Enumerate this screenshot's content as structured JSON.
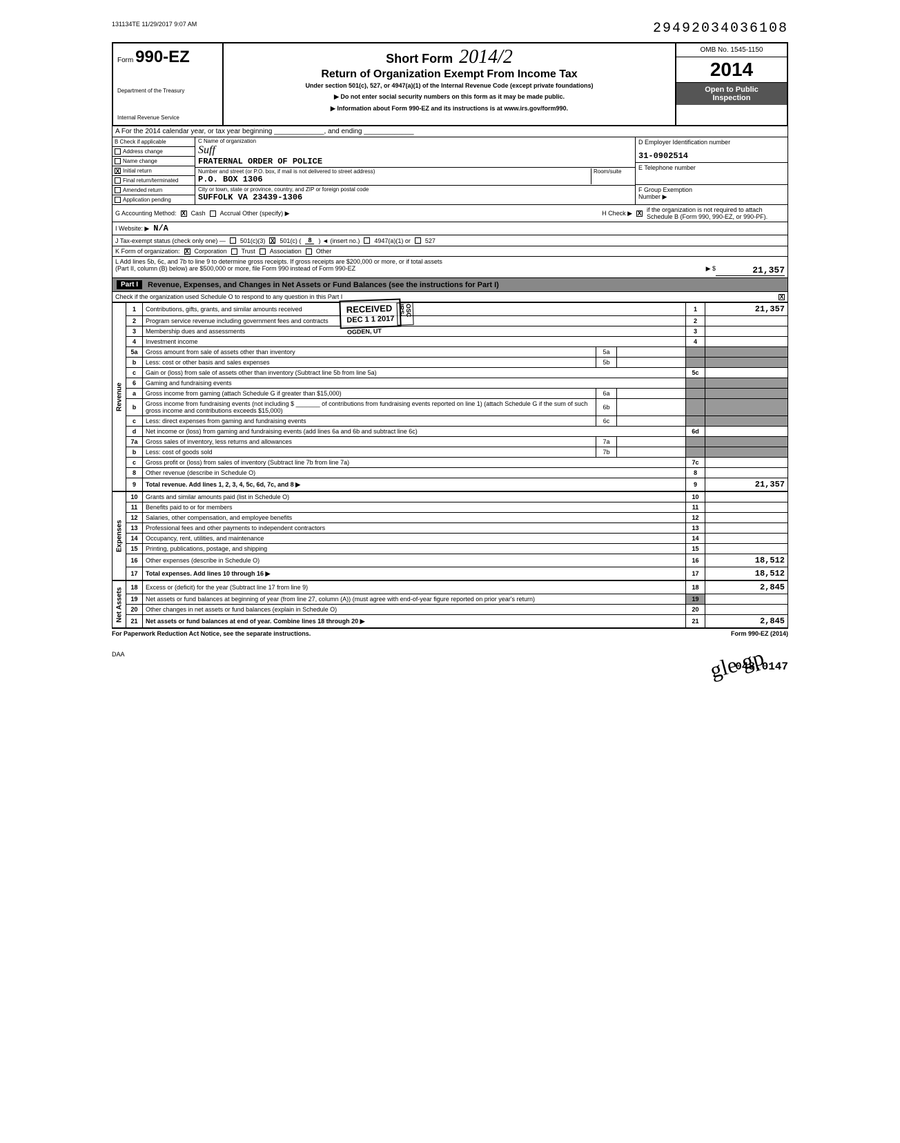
{
  "header": {
    "timestamp": "131134TE 11/29/2017 9:07 AM",
    "doc_number": "29492034036108",
    "form_prefix": "Form",
    "form_number": "990-EZ",
    "dept1": "Department of the Treasury",
    "dept2": "Internal Revenue Service",
    "short_form": "Short Form",
    "handwritten_year": "2014/2",
    "title": "Return of Organization Exempt From Income Tax",
    "subtitle": "Under section 501(c), 527, or 4947(a)(1) of the Internal Revenue Code (except private foundations)",
    "instruction1": "▶ Do not enter social security numbers on this form as it may be made public.",
    "instruction2": "▶ Information about Form 990-EZ and its instructions is at www.irs.gov/form990.",
    "omb": "OMB No. 1545-1150",
    "year": "2014",
    "public1": "Open to Public",
    "public2": "Inspection"
  },
  "section_a": "A  For the 2014 calendar year, or tax year beginning _____________, and ending _____________",
  "checks": {
    "b_label": "B Check if applicable",
    "address": "Address change",
    "name": "Name change",
    "initial": "Initial return",
    "initial_x": "X",
    "final": "Final return/terminated",
    "amended": "Amended return",
    "app": "Application pending"
  },
  "org": {
    "c_label": "C Name of organization",
    "name_hand": "Suff",
    "name": "FRATERNAL ORDER OF POLICE",
    "addr_label": "Number and street (or P.O. box, if mail is not delivered to street address)",
    "room_label": "Room/suite",
    "addr": "P.O. BOX 1306",
    "city_label": "City or town, state or province, country, and ZIP or foreign postal code",
    "city": "SUFFOLK                VA 23439-1306"
  },
  "right": {
    "d_label": "D Employer Identification number",
    "ein": "31-0902514",
    "e_label": "E Telephone number",
    "f_label": "F Group Exemption",
    "f_label2": "Number ▶"
  },
  "lines_gk": {
    "g": "G  Accounting Method:",
    "g_cash": "Cash",
    "g_accrual": "Accrual  Other (specify) ▶",
    "g_x": "X",
    "h": "H  Check ▶",
    "h_x": "X",
    "h_text": "if the organization is not required to attach Schedule B (Form 990, 990-EZ, or 990-PF).",
    "i": "I  Website: ▶",
    "i_val": "N/A",
    "j": "J  Tax-exempt status (check only one) —",
    "j_501c3": "501(c)(3)",
    "j_501c": "501(c) (",
    "j_x": "X",
    "j_num": "8",
    "j_insert": ") ◄ (insert no.)",
    "j_4947": "4947(a)(1) or",
    "j_527": "527",
    "k": "K  Form of organization:",
    "k_x": "X",
    "k_corp": "Corporation",
    "k_trust": "Trust",
    "k_assoc": "Association",
    "k_other": "Other",
    "l": "L  Add lines 5b, 6c, and 7b to line 9 to determine gross receipts. If gross receipts are $200,000 or more, or if total assets",
    "l2": "(Part II, column (B) below) are $500,000 or more, file Form 990 instead of Form 990-EZ",
    "l_arrow": "▶ $",
    "l_amount": "21,357"
  },
  "part1": {
    "label": "Part I",
    "title": "Revenue, Expenses, and Changes in Net Assets or Fund Balances (see the instructions for Part I)",
    "check": "Check if the organization used Schedule O to respond to any question in this Part I",
    "check_x": "X"
  },
  "revenue_label": "Revenue",
  "expenses_label": "Expenses",
  "netassets_label": "Net Assets",
  "rows": [
    {
      "n": "1",
      "d": "Contributions, gifts, grants, and similar amounts received",
      "ln": "1",
      "amt": "21,357"
    },
    {
      "n": "2",
      "d": "Program service revenue including government fees and contracts",
      "ln": "2",
      "amt": ""
    },
    {
      "n": "3",
      "d": "Membership dues and assessments",
      "ln": "3",
      "amt": ""
    },
    {
      "n": "4",
      "d": "Investment income",
      "ln": "4",
      "amt": ""
    },
    {
      "n": "5a",
      "d": "Gross amount from sale of assets other than inventory",
      "sub": "5a",
      "shaded": true
    },
    {
      "n": "b",
      "d": "Less: cost or other basis and sales expenses",
      "sub": "5b",
      "shaded": true
    },
    {
      "n": "c",
      "d": "Gain or (loss) from sale of assets other than inventory (Subtract line 5b from line 5a)",
      "ln": "5c",
      "amt": ""
    },
    {
      "n": "6",
      "d": "Gaming and fundraising events",
      "shaded": true,
      "nolinenum": true
    },
    {
      "n": "a",
      "d": "Gross income from gaming (attach Schedule G if greater than $15,000)",
      "sub": "6a",
      "shaded": true
    },
    {
      "n": "b",
      "d": "Gross income from fundraising events (not including $ _______ of contributions from fundraising events reported on line 1) (attach Schedule G if the sum of such gross income and contributions exceeds $15,000)",
      "sub": "6b",
      "shaded": true
    },
    {
      "n": "c",
      "d": "Less: direct expenses from gaming and fundraising events",
      "sub": "6c",
      "shaded": true
    },
    {
      "n": "d",
      "d": "Net income or (loss) from gaming and fundraising events (add lines 6a and 6b and subtract line 6c)",
      "ln": "6d",
      "amt": ""
    },
    {
      "n": "7a",
      "d": "Gross sales of inventory, less returns and allowances",
      "sub": "7a",
      "shaded": true
    },
    {
      "n": "b",
      "d": "Less: cost of goods sold",
      "sub": "7b",
      "shaded": true
    },
    {
      "n": "c",
      "d": "Gross profit or (loss) from sales of inventory (Subtract line 7b from line 7a)",
      "ln": "7c",
      "amt": ""
    },
    {
      "n": "8",
      "d": "Other revenue (describe in Schedule O)",
      "ln": "8",
      "amt": ""
    },
    {
      "n": "9",
      "d": "Total revenue. Add lines 1, 2, 3, 4, 5c, 6d, 7c, and 8",
      "ln": "9",
      "amt": "21,357",
      "bold": true,
      "arrow": true
    }
  ],
  "exp_rows": [
    {
      "n": "10",
      "d": "Grants and similar amounts paid (list in Schedule O)",
      "ln": "10",
      "amt": ""
    },
    {
      "n": "11",
      "d": "Benefits paid to or for members",
      "ln": "11",
      "amt": ""
    },
    {
      "n": "12",
      "d": "Salaries, other compensation, and employee benefits",
      "ln": "12",
      "amt": ""
    },
    {
      "n": "13",
      "d": "Professional fees and other payments to independent contractors",
      "ln": "13",
      "amt": ""
    },
    {
      "n": "14",
      "d": "Occupancy, rent, utilities, and maintenance",
      "ln": "14",
      "amt": ""
    },
    {
      "n": "15",
      "d": "Printing, publications, postage, and shipping",
      "ln": "15",
      "amt": ""
    },
    {
      "n": "16",
      "d": "Other expenses (describe in Schedule O)",
      "ln": "16",
      "amt": "18,512"
    },
    {
      "n": "17",
      "d": "Total expenses. Add lines 10 through 16",
      "ln": "17",
      "amt": "18,512",
      "bold": true,
      "arrow": true
    }
  ],
  "net_rows": [
    {
      "n": "18",
      "d": "Excess or (deficit) for the year (Subtract line 17 from line 9)",
      "ln": "18",
      "amt": "2,845"
    },
    {
      "n": "19",
      "d": "Net assets or fund balances at beginning of year (from line 27, column (A)) (must agree with end-of-year figure reported on prior year's return)",
      "ln": "19",
      "amt": "",
      "shaded_num": true
    },
    {
      "n": "20",
      "d": "Other changes in net assets or fund balances (explain in Schedule O)",
      "ln": "20",
      "amt": ""
    },
    {
      "n": "21",
      "d": "Net assets or fund balances at end of year. Combine lines 18 through 20",
      "ln": "21",
      "amt": "2,845",
      "bold": true,
      "arrow": true
    }
  ],
  "stamp": {
    "received": "RECEIVED",
    "date": "DEC 1 1 2017",
    "irs": "IRS-OSC",
    "ogden": "OGDEN, UT"
  },
  "footer": {
    "notice": "For Paperwork Reduction Act Notice, see the separate instructions.",
    "form": "Form 990-EZ (2014)"
  },
  "daa": "DAA",
  "bottom_num": "048.0147",
  "bottom_hand": "gle gp"
}
